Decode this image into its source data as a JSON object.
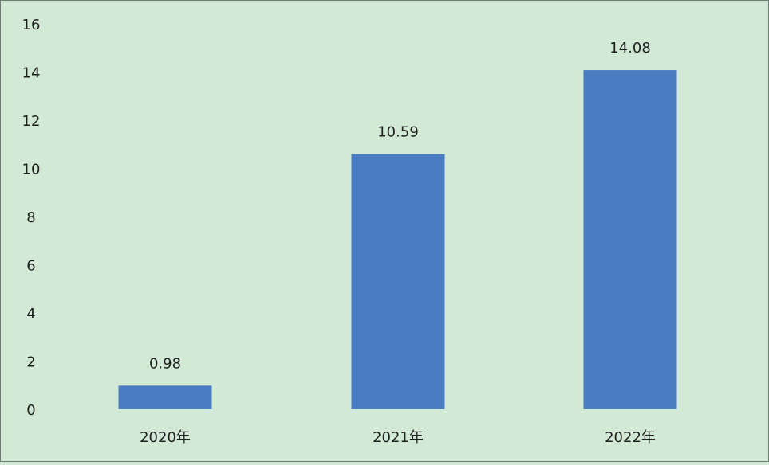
{
  "chart_data": {
    "type": "bar",
    "categories": [
      "2020年",
      "2021年",
      "2022年"
    ],
    "values": [
      0.98,
      10.59,
      14.08
    ],
    "data_labels": [
      "0.98",
      "10.59",
      "14.08"
    ],
    "title": "",
    "xlabel": "",
    "ylabel": "",
    "ylim": [
      0,
      16
    ],
    "yticks": [
      "0",
      "2",
      "4",
      "6",
      "8",
      "10",
      "12",
      "14",
      "16"
    ],
    "grid": false,
    "legend": "none",
    "colors": {
      "bar": "#4a7cc1",
      "background": "#d2e9d5"
    }
  }
}
